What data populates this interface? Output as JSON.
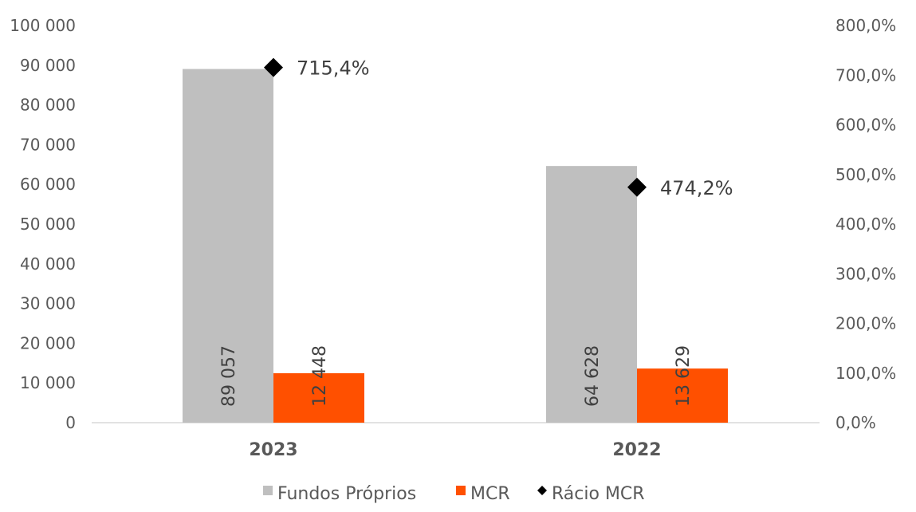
{
  "chart_data": {
    "type": "bar",
    "categories": [
      "2023",
      "2022"
    ],
    "series": [
      {
        "name": "Fundos Próprios",
        "axis": "left",
        "values": [
          89057,
          64628
        ],
        "labels": [
          "89 057",
          "64 628"
        ],
        "color": "#bfbfbf"
      },
      {
        "name": "MCR",
        "axis": "left",
        "values": [
          12448,
          13629
        ],
        "labels": [
          "12 448",
          "13 629"
        ],
        "color": "#ff5000"
      },
      {
        "name": "Rácio MCR",
        "axis": "right",
        "marker": "diamond",
        "values": [
          715.4,
          474.2
        ],
        "labels": [
          "715,4%",
          "474,2%"
        ],
        "color": "#000000"
      }
    ],
    "y_left": {
      "range": [
        0,
        100000
      ],
      "ticks": [
        "0",
        "10 000",
        "20 000",
        "30 000",
        "40 000",
        "50 000",
        "60 000",
        "70 000",
        "80 000",
        "90 000",
        "100 000"
      ]
    },
    "y_right": {
      "range": [
        0,
        800
      ],
      "ticks": [
        "0,0%",
        "100,0%",
        "200,0%",
        "300,0%",
        "400,0%",
        "500,0%",
        "600,0%",
        "700,0%",
        "800,0%"
      ]
    },
    "grid": false,
    "legend_position": "bottom"
  }
}
